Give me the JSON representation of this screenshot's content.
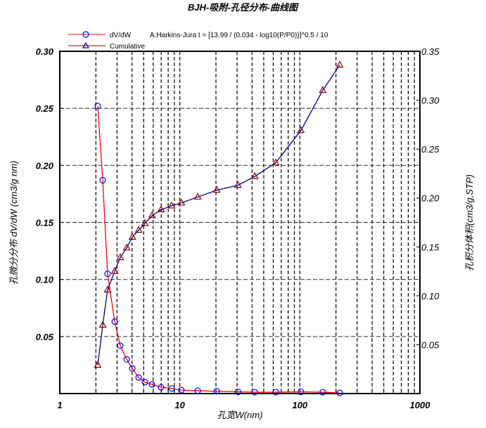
{
  "chart_data": {
    "type": "line",
    "title": "BJH-吸附-孔径分布-曲线图",
    "xlabel": "孔宽W(nm)",
    "ylabel_left": "孔微分分布 dV/dW (cm3/g nm)",
    "ylabel_right": "孔积分体积(cm3/g,STP)",
    "x_scale": "log",
    "xlim": [
      1,
      1000
    ],
    "ylim_left": [
      0,
      0.3
    ],
    "ylim_right": [
      0,
      0.35
    ],
    "x_ticks": [
      "1",
      "10",
      "100",
      "1000"
    ],
    "y_ticks_left": [
      "0.05",
      "0.10",
      "0.15",
      "0.20",
      "0.25",
      "0.30"
    ],
    "y_ticks_right": [
      "0.05",
      "0.10",
      "0.15",
      "0.20",
      "0.25",
      "0.30",
      "0.35"
    ],
    "grid": true,
    "legend_position": "top-left",
    "annotation": "A:Harkins-Jura  t = [13.99 / (0.034 - log10(P/P0))]^0.5 / 10",
    "x": [
      2.07,
      2.28,
      2.5,
      2.87,
      3.19,
      3.61,
      4.02,
      4.54,
      5.12,
      5.87,
      6.98,
      8.55,
      10.3,
      14.1,
      20.3,
      30.5,
      42.1,
      63.0,
      102,
      155,
      215
    ],
    "series": [
      {
        "name": "dV/dW",
        "axis": "left",
        "color": "#ff0000",
        "marker": "circle",
        "marker_color": "#0000ff",
        "values": [
          0.252,
          0.187,
          0.105,
          0.063,
          0.042,
          0.03,
          0.022,
          0.014,
          0.01,
          0.008,
          0.0055,
          0.0045,
          0.003,
          0.0025,
          0.002,
          0.0015,
          0.0012,
          0.0012,
          0.0015,
          0.0012,
          0.0006
        ]
      },
      {
        "name": "Cumulative",
        "axis": "right",
        "color": "#00008b",
        "marker": "triangle",
        "marker_color": "#8b0000",
        "values": [
          0.029,
          0.07,
          0.106,
          0.125,
          0.139,
          0.149,
          0.16,
          0.167,
          0.174,
          0.182,
          0.188,
          0.192,
          0.195,
          0.201,
          0.208,
          0.213,
          0.222,
          0.236,
          0.269,
          0.31,
          0.336
        ]
      }
    ]
  },
  "legend": {
    "items": [
      {
        "label": "dV/dW"
      },
      {
        "label": "Cumulative"
      }
    ]
  }
}
